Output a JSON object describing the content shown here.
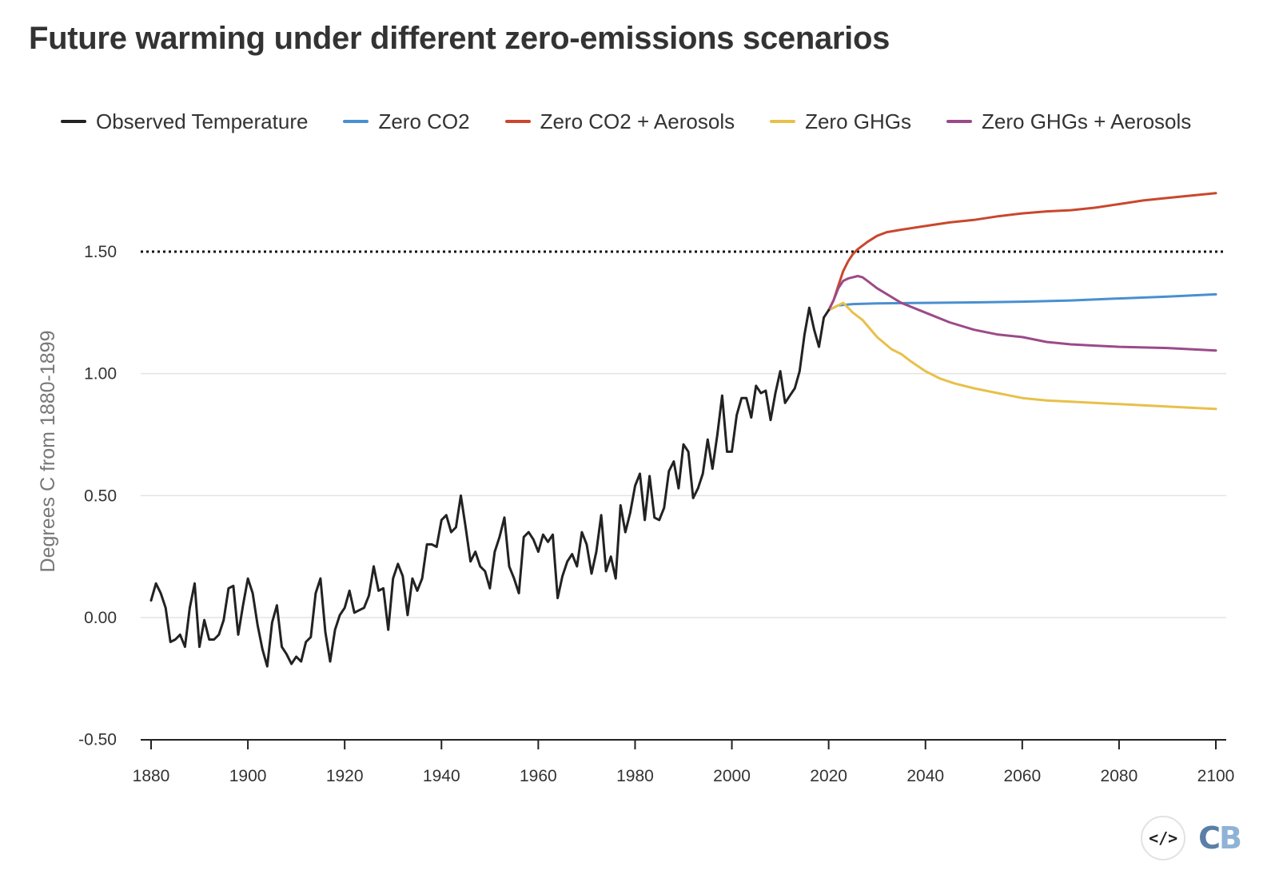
{
  "title": "Future warming under different zero-emissions scenarios",
  "logo": {
    "embed_label": "</>",
    "mark_c": "C",
    "mark_b": "B"
  },
  "chart_data": {
    "type": "line",
    "ylabel": "Degrees C from 1880-1899",
    "xlim": [
      1880,
      2100
    ],
    "ylim": [
      -0.5,
      1.9
    ],
    "x_ticks": [
      1880,
      1900,
      1920,
      1940,
      1960,
      1980,
      2000,
      2020,
      2040,
      2060,
      2080,
      2100
    ],
    "y_ticks": [
      -0.5,
      0.0,
      0.5,
      1.0,
      1.5
    ],
    "y_tick_labels": [
      "-0.50",
      "0.00",
      "0.50",
      "1.00",
      "1.50"
    ],
    "grid": "horizontal",
    "legend_position": "top",
    "reference_line": {
      "y": 1.5,
      "style": "dotted"
    },
    "series": [
      {
        "name": "Observed Temperature",
        "color": "#222222",
        "x": [
          1880,
          1881,
          1882,
          1883,
          1884,
          1885,
          1886,
          1887,
          1888,
          1889,
          1890,
          1891,
          1892,
          1893,
          1894,
          1895,
          1896,
          1897,
          1898,
          1899,
          1900,
          1901,
          1902,
          1903,
          1904,
          1905,
          1906,
          1907,
          1908,
          1909,
          1910,
          1911,
          1912,
          1913,
          1914,
          1915,
          1916,
          1917,
          1918,
          1919,
          1920,
          1921,
          1922,
          1923,
          1924,
          1925,
          1926,
          1927,
          1928,
          1929,
          1930,
          1931,
          1932,
          1933,
          1934,
          1935,
          1936,
          1937,
          1938,
          1939,
          1940,
          1941,
          1942,
          1943,
          1944,
          1945,
          1946,
          1947,
          1948,
          1949,
          1950,
          1951,
          1952,
          1953,
          1954,
          1955,
          1956,
          1957,
          1958,
          1959,
          1960,
          1961,
          1962,
          1963,
          1964,
          1965,
          1966,
          1967,
          1968,
          1969,
          1970,
          1971,
          1972,
          1973,
          1974,
          1975,
          1976,
          1977,
          1978,
          1979,
          1980,
          1981,
          1982,
          1983,
          1984,
          1985,
          1986,
          1987,
          1988,
          1989,
          1990,
          1991,
          1992,
          1993,
          1994,
          1995,
          1996,
          1997,
          1998,
          1999,
          2000,
          2001,
          2002,
          2003,
          2004,
          2005,
          2006,
          2007,
          2008,
          2009,
          2010,
          2011,
          2012,
          2013,
          2014,
          2015,
          2016,
          2017,
          2018,
          2019,
          2020
        ],
        "y": [
          0.07,
          0.14,
          0.1,
          0.04,
          -0.1,
          -0.09,
          -0.07,
          -0.12,
          0.04,
          0.14,
          -0.12,
          -0.01,
          -0.09,
          -0.09,
          -0.07,
          -0.01,
          0.12,
          0.13,
          -0.07,
          0.05,
          0.16,
          0.1,
          -0.03,
          -0.13,
          -0.2,
          -0.02,
          0.05,
          -0.12,
          -0.15,
          -0.19,
          -0.16,
          -0.18,
          -0.1,
          -0.08,
          0.1,
          0.16,
          -0.06,
          -0.18,
          -0.05,
          0.01,
          0.04,
          0.11,
          0.02,
          0.03,
          0.04,
          0.09,
          0.21,
          0.11,
          0.12,
          -0.05,
          0.16,
          0.22,
          0.17,
          0.01,
          0.16,
          0.11,
          0.16,
          0.3,
          0.3,
          0.29,
          0.4,
          0.42,
          0.35,
          0.37,
          0.5,
          0.37,
          0.23,
          0.27,
          0.21,
          0.19,
          0.12,
          0.27,
          0.33,
          0.41,
          0.21,
          0.16,
          0.1,
          0.33,
          0.35,
          0.32,
          0.27,
          0.34,
          0.31,
          0.34,
          0.08,
          0.17,
          0.23,
          0.26,
          0.21,
          0.35,
          0.3,
          0.18,
          0.27,
          0.42,
          0.19,
          0.25,
          0.16,
          0.46,
          0.35,
          0.43,
          0.54,
          0.59,
          0.4,
          0.58,
          0.41,
          0.4,
          0.45,
          0.6,
          0.64,
          0.53,
          0.71,
          0.68,
          0.49,
          0.53,
          0.59,
          0.73,
          0.61,
          0.75,
          0.91,
          0.68,
          0.68,
          0.83,
          0.9,
          0.9,
          0.82,
          0.95,
          0.92,
          0.93,
          0.81,
          0.92,
          1.01,
          0.88,
          0.91,
          0.94,
          1.01,
          1.16,
          1.27,
          1.18,
          1.11,
          1.23,
          1.26
        ]
      },
      {
        "name": "Zero CO2",
        "color": "#4a8fcf",
        "x": [
          2020,
          2022,
          2025,
          2030,
          2040,
          2050,
          2060,
          2070,
          2080,
          2090,
          2100
        ],
        "y": [
          1.26,
          1.28,
          1.285,
          1.288,
          1.29,
          1.292,
          1.295,
          1.3,
          1.308,
          1.316,
          1.325
        ]
      },
      {
        "name": "Zero CO2 + Aerosols",
        "color": "#c9472d",
        "x": [
          2020,
          2021,
          2022,
          2023,
          2024,
          2025,
          2026,
          2028,
          2030,
          2032,
          2035,
          2040,
          2045,
          2050,
          2055,
          2060,
          2065,
          2070,
          2075,
          2080,
          2085,
          2090,
          2095,
          2100
        ],
        "y": [
          1.26,
          1.3,
          1.36,
          1.42,
          1.46,
          1.49,
          1.51,
          1.54,
          1.565,
          1.58,
          1.59,
          1.605,
          1.62,
          1.63,
          1.645,
          1.657,
          1.665,
          1.67,
          1.68,
          1.695,
          1.71,
          1.72,
          1.73,
          1.74
        ]
      },
      {
        "name": "Zero GHGs",
        "color": "#e8c04a",
        "x": [
          2020,
          2022,
          2023,
          2024,
          2025,
          2027,
          2030,
          2033,
          2035,
          2037,
          2040,
          2043,
          2046,
          2050,
          2055,
          2060,
          2065,
          2070,
          2080,
          2090,
          2100
        ],
        "y": [
          1.26,
          1.28,
          1.29,
          1.27,
          1.25,
          1.22,
          1.15,
          1.1,
          1.08,
          1.05,
          1.01,
          0.98,
          0.96,
          0.94,
          0.92,
          0.9,
          0.89,
          0.885,
          0.875,
          0.865,
          0.855
        ]
      },
      {
        "name": "Zero GHGs + Aerosols",
        "color": "#9b4a89",
        "x": [
          2020,
          2021,
          2022,
          2023,
          2024,
          2025,
          2026,
          2027,
          2028,
          2030,
          2035,
          2040,
          2045,
          2050,
          2055,
          2060,
          2065,
          2070,
          2075,
          2080,
          2090,
          2100
        ],
        "y": [
          1.26,
          1.3,
          1.35,
          1.38,
          1.39,
          1.395,
          1.4,
          1.395,
          1.38,
          1.35,
          1.29,
          1.25,
          1.21,
          1.18,
          1.16,
          1.15,
          1.13,
          1.12,
          1.115,
          1.11,
          1.105,
          1.095
        ]
      }
    ]
  }
}
